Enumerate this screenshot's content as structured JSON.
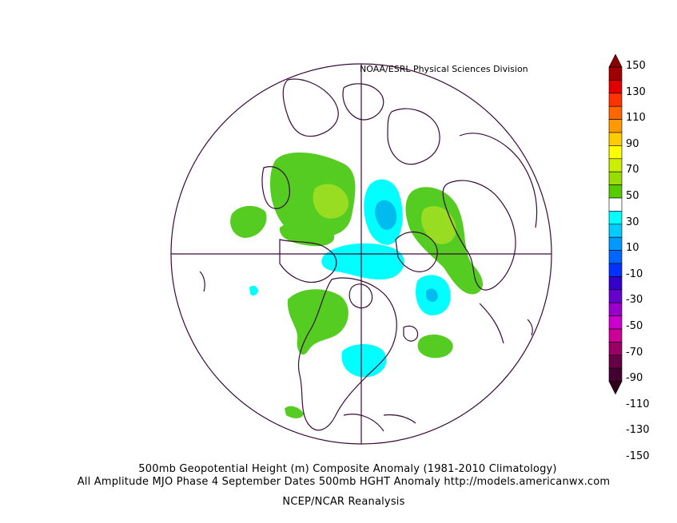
{
  "credit": "NOAA/ESRL Physical Sciences Division",
  "caption_line1": "500mb Geopotential Height (m) Composite Anomaly (1981-2010 Climatology)",
  "caption_line2": "All Amplitude MJO Phase 4 September Dates 500mb HGHT Anomaly http://models.americanwx.com",
  "caption_line3": "NCEP/NCAR Reanalysis",
  "colorbar": {
    "labels": [
      "150",
      "130",
      "110",
      "90",
      "70",
      "50",
      "30",
      "10",
      "-10",
      "-30",
      "-50",
      "-70",
      "-90",
      "-110",
      "-130",
      "-150"
    ],
    "colors": [
      "#a00000",
      "#e00000",
      "#ff3300",
      "#ff6600",
      "#ff9900",
      "#ffcc00",
      "#ffff00",
      "#ccee00",
      "#99dd00",
      "#55cc00",
      "#ffffff",
      "#00ffff",
      "#00ccff",
      "#0099ff",
      "#0066ff",
      "#0033ff",
      "#3300cc",
      "#6600cc",
      "#9900cc",
      "#cc00cc",
      "#cc0099",
      "#990066",
      "#660044",
      "#440033"
    ],
    "top_color": "#8b0000",
    "bottom_color": "#33001a"
  },
  "map": {
    "projection": "north polar stereographic",
    "land_outline_color": "#3a0a3a",
    "anomaly_colors": {
      "pos_10_30": "#55cc22",
      "pos_30_50": "#99dd22",
      "neg_10_30": "#00ffff",
      "neg_30_50": "#00bbee"
    }
  }
}
